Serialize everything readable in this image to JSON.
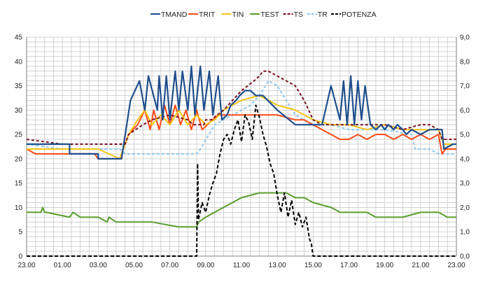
{
  "chart_data": {
    "type": "line",
    "title": "",
    "xlabel": "",
    "ylabel": "",
    "y2label": "",
    "grid": true,
    "legend_position": "top",
    "xlim": [
      23,
      47
    ],
    "ylim": [
      0,
      45
    ],
    "y2lim": [
      0,
      9
    ],
    "x_tick_labels": [
      "23.00",
      "01.00",
      "03.00",
      "05.00",
      "07.00",
      "09.00",
      "11.00",
      "13.00",
      "15.00",
      "17.00",
      "19.00",
      "21.00",
      "23.00"
    ],
    "y_tick_labels": [
      "0",
      "5",
      "10",
      "15",
      "20",
      "25",
      "30",
      "35",
      "40",
      "45"
    ],
    "y2_tick_labels": [
      "0,0",
      "1,0",
      "2,0",
      "3,0",
      "4,0",
      "5,0",
      "6,0",
      "7,0",
      "8,0",
      "9,0"
    ],
    "series": [
      {
        "name": "TMAND",
        "color": "#1f4e8c",
        "dash": "solid",
        "axis": "left",
        "x": [
          23,
          25.4,
          25.4,
          27.0,
          27.0,
          28.0,
          28.3,
          28.8,
          29.3,
          29.6,
          29.8,
          30.3,
          30.4,
          30.6,
          30.8,
          31.0,
          31.3,
          31.5,
          31.7,
          32.0,
          32.2,
          32.4,
          32.7,
          32.9,
          33.2,
          33.4,
          33.7,
          33.9,
          34.2,
          34.4,
          34.7,
          34.9,
          35.2,
          35.5,
          35.8,
          36.2,
          37.0,
          38.0,
          39.5,
          40.0,
          40.5,
          40.7,
          40.9,
          41.1,
          41.3,
          41.5,
          41.7,
          41.9,
          42.2,
          42.5,
          42.8,
          43.0,
          43.2,
          43.5,
          43.7,
          44.0,
          44.2,
          44.5,
          45.0,
          45.5,
          46.2,
          46.3,
          46.8,
          47
        ],
        "y": [
          23,
          23,
          21,
          21,
          20,
          20,
          20,
          32,
          36,
          30,
          37,
          30,
          37,
          28,
          37,
          28,
          38,
          30,
          38,
          30,
          39,
          29,
          39,
          30,
          38,
          29,
          37,
          28,
          29,
          31,
          32,
          33,
          34,
          34,
          33,
          33,
          30,
          27,
          27,
          35,
          28,
          36,
          27,
          37,
          27,
          36,
          28,
          35,
          27,
          26,
          27,
          26,
          27,
          26,
          27,
          26,
          25,
          26,
          25,
          26,
          26,
          22,
          23,
          23
        ]
      },
      {
        "name": "TRIT",
        "color": "#ff4a14",
        "dash": "solid",
        "axis": "left",
        "x": [
          23,
          23.5,
          24.5,
          25.0,
          25.5,
          26.0,
          26.8,
          27.0,
          28.2,
          28.7,
          29.2,
          29.6,
          29.9,
          30.1,
          30.4,
          30.7,
          31.0,
          31.3,
          31.6,
          31.9,
          32.2,
          32.5,
          32.8,
          33.1,
          33.4,
          33.7,
          34.2,
          35.0,
          36.0,
          37.0,
          38.0,
          38.5,
          39.0,
          39.5,
          40.0,
          40.5,
          41.0,
          41.5,
          42.0,
          42.5,
          43.0,
          43.5,
          44.0,
          44.5,
          45.0,
          45.5,
          46.0,
          46.2,
          46.4,
          46.5,
          47
        ],
        "y": [
          22,
          21,
          21,
          21,
          21,
          21,
          21,
          20,
          20,
          25,
          27,
          30,
          26,
          30,
          26,
          31,
          27,
          31,
          27,
          30,
          26,
          30,
          26,
          27,
          28,
          29,
          29,
          29,
          29,
          29,
          28,
          28,
          27,
          26,
          25,
          24,
          24,
          25,
          24,
          25,
          25,
          24,
          25,
          24,
          25,
          24,
          25,
          21,
          22,
          22,
          22
        ]
      },
      {
        "name": "TIN",
        "color": "#f5c518",
        "dash": "solid",
        "axis": "left",
        "x": [
          23,
          25.5,
          27.0,
          28.2,
          28.7,
          29.2,
          29.6,
          30.0,
          30.5,
          31.0,
          31.5,
          32.0,
          32.5,
          33.0,
          33.5,
          34.0,
          35.0,
          36.0,
          36.5,
          37.0,
          38.0,
          39.0,
          40.0,
          41.0,
          42.0,
          43.0,
          44.0,
          45.0,
          46.0,
          46.3,
          47
        ],
        "y": [
          22,
          22,
          22,
          20,
          25,
          28,
          30,
          27,
          29,
          27,
          30,
          27,
          29,
          27,
          28,
          30,
          32,
          33,
          32,
          31,
          30,
          28,
          27,
          27,
          26,
          27,
          26,
          26,
          26,
          23,
          23
        ]
      },
      {
        "name": "TEST",
        "color": "#5a9e2e",
        "dash": "solid",
        "axis": "left",
        "x": [
          23,
          23.8,
          23.9,
          24.0,
          24.1,
          25.4,
          25.6,
          26.0,
          26.1,
          27.0,
          27.5,
          27.6,
          28.0,
          29.5,
          30.0,
          31.5,
          32.0,
          32.5,
          32.6,
          33.0,
          33.5,
          34.0,
          34.5,
          35.0,
          36.0,
          37.0,
          37.5,
          38.0,
          38.5,
          39.0,
          40.0,
          40.5,
          41.0,
          42.0,
          42.5,
          43.0,
          44.0,
          45.0,
          46.0,
          46.5,
          47
        ],
        "y": [
          9,
          9,
          10,
          9,
          9,
          8,
          9,
          8,
          8,
          8,
          7,
          8,
          7,
          7,
          7,
          6,
          6,
          6,
          7,
          8,
          9,
          10,
          11,
          12,
          13,
          13,
          13,
          12,
          12,
          11,
          10,
          9,
          9,
          9,
          8,
          8,
          8,
          9,
          9,
          8,
          8
        ]
      },
      {
        "name": "TS",
        "color": "#7a1020",
        "dash": "dashed",
        "axis": "left",
        "x": [
          23,
          25.0,
          28.5,
          28.7,
          29.5,
          30.0,
          31.0,
          32.0,
          32.3,
          32.9,
          33.0,
          33.3,
          34.0,
          34.5,
          35.0,
          35.7,
          36.0,
          36.2,
          36.5,
          37.0,
          38.0,
          38.5,
          39.0,
          39.5,
          40.0,
          41.0,
          42.0,
          43.0,
          44.0,
          45.0,
          45.5,
          46.0,
          46.2,
          46.5,
          47
        ],
        "y": [
          24,
          23,
          23,
          25,
          27,
          28,
          29,
          28,
          27,
          27,
          28,
          28,
          30,
          32,
          34,
          36,
          37,
          38,
          38,
          37,
          35,
          32,
          28,
          27,
          27,
          27,
          27,
          27,
          26,
          27,
          27,
          26,
          24,
          24,
          24
        ]
      },
      {
        "name": "TR",
        "color": "#8ec8ee",
        "dash": "dashed",
        "axis": "left",
        "x": [
          23,
          25.0,
          25.5,
          28.2,
          28.5,
          32.5,
          32.7,
          33.5,
          34.0,
          35.0,
          35.5,
          36.0,
          36.5,
          37.0,
          37.5,
          38.0,
          38.5,
          38.8,
          39.0,
          40.0,
          41.0,
          42.0,
          43.0,
          44.5,
          44.7,
          45.5,
          46.0,
          46.2,
          47
        ],
        "y": [
          23,
          22,
          22,
          22,
          21,
          21,
          22,
          27,
          28,
          30,
          31,
          33,
          36,
          35,
          32,
          29,
          28,
          27,
          27,
          27,
          26,
          26,
          26,
          25,
          22,
          22,
          21,
          21,
          21
        ],
        "note": ""
      },
      {
        "name": "POTENZA",
        "color": "#000000",
        "dash": "dashed",
        "axis": "right",
        "x": [
          23,
          32.5,
          32.55,
          32.6,
          32.8,
          33.0,
          33.2,
          33.4,
          33.6,
          33.8,
          34.0,
          34.2,
          34.4,
          34.6,
          34.8,
          35.0,
          35.2,
          35.4,
          35.6,
          35.8,
          36.0,
          36.2,
          36.4,
          36.6,
          36.8,
          37.0,
          37.2,
          37.4,
          37.6,
          37.8,
          38.0,
          38.2,
          38.4,
          38.6,
          38.8,
          38.9,
          39.0,
          47
        ],
        "y": [
          0,
          0,
          3.8,
          1.5,
          2.2,
          1.8,
          2.5,
          3.0,
          3.4,
          4.2,
          4.8,
          5.0,
          4.6,
          5.2,
          5.6,
          4.7,
          5.8,
          5.5,
          4.8,
          6.2,
          5.7,
          5.0,
          4.5,
          3.8,
          3.4,
          2.5,
          1.8,
          2.6,
          1.6,
          2.3,
          1.3,
          1.8,
          1.2,
          1.6,
          0.7,
          0.5,
          0,
          0
        ]
      }
    ]
  }
}
